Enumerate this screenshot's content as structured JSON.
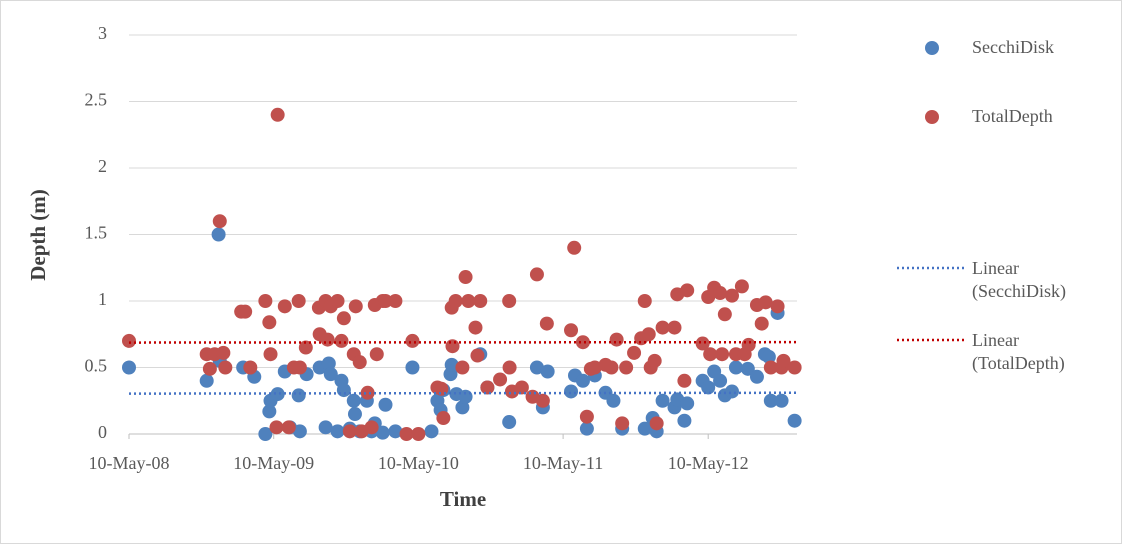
{
  "chart_data": {
    "type": "scatter",
    "x_label": "Time",
    "y_label": "Depth (m)",
    "xlim": [
      "2008-05-10",
      "2012-12-20"
    ],
    "xticks": [
      {
        "value": "2008-05-10",
        "label": "10-May-08"
      },
      {
        "value": "2009-05-10",
        "label": "10-May-09"
      },
      {
        "value": "2010-05-10",
        "label": "10-May-10"
      },
      {
        "value": "2011-05-10",
        "label": "10-May-11"
      },
      {
        "value": "2012-05-10",
        "label": "10-May-12"
      }
    ],
    "ylim": [
      0,
      3
    ],
    "yticks": [
      0,
      0.5,
      1,
      1.5,
      2,
      2.5,
      3
    ],
    "grid": true,
    "legend": "right",
    "series": [
      {
        "name": "SecchiDisk",
        "color": "#4f81bd",
        "trendline": {
          "name": "Linear (SecchiDisk)",
          "color": "#4472c4"
        },
        "x": [
          "2008-05-10",
          "2008-11-22",
          "2008-12-22",
          "2008-12-25",
          "2009-02-22",
          "2009-03-22",
          "2009-04-19",
          "2009-04-29",
          "2009-05-02",
          "2009-05-20",
          "2009-06-07",
          "2009-06-20",
          "2009-07-12",
          "2009-07-15",
          "2009-08-01",
          "2009-09-03",
          "2009-09-18",
          "2009-09-26",
          "2009-10-01",
          "2009-10-18",
          "2009-10-28",
          "2009-11-03",
          "2009-11-18",
          "2009-11-28",
          "2009-12-01",
          "2009-12-13",
          "2009-12-31",
          "2010-01-12",
          "2010-01-20",
          "2010-02-09",
          "2010-02-16",
          "2010-03-13",
          "2010-04-25",
          "2010-06-12",
          "2010-06-27",
          "2010-07-05",
          "2010-07-12",
          "2010-07-30",
          "2010-08-02",
          "2010-08-14",
          "2010-08-29",
          "2010-09-06",
          "2010-10-13",
          "2010-10-31",
          "2010-12-25",
          "2011-03-05",
          "2011-03-20",
          "2011-04-01",
          "2011-05-30",
          "2011-06-09",
          "2011-06-29",
          "2011-07-09",
          "2011-07-29",
          "2011-08-25",
          "2011-09-14",
          "2011-10-06",
          "2011-12-02",
          "2011-12-22",
          "2012-01-01",
          "2012-01-16",
          "2012-02-15",
          "2012-02-22",
          "2012-03-11",
          "2012-03-18",
          "2012-04-26",
          "2012-05-10",
          "2012-05-25",
          "2012-06-09",
          "2012-06-21",
          "2012-07-09",
          "2012-07-19",
          "2012-08-18",
          "2012-09-10",
          "2012-09-30",
          "2012-10-10",
          "2012-10-15",
          "2012-11-01",
          "2012-11-11",
          "2012-12-14"
        ],
        "values": [
          0.5,
          0.4,
          1.5,
          0.55,
          0.5,
          0.43,
          0,
          0.17,
          0.25,
          0.3,
          0.47,
          0.05,
          0.29,
          0.02,
          0.45,
          0.5,
          0.05,
          0.53,
          0.45,
          0.02,
          0.4,
          0.33,
          0.04,
          0.25,
          0.15,
          0.02,
          0.25,
          0.02,
          0.08,
          0.01,
          0.22,
          0.02,
          0.5,
          0.02,
          0.25,
          0.18,
          0.33,
          0.45,
          0.52,
          0.3,
          0.2,
          0.28,
          0.6,
          0.35,
          0.09,
          0.5,
          0.2,
          0.47,
          0.32,
          0.44,
          0.4,
          0.04,
          0.44,
          0.31,
          0.25,
          0.04,
          0.04,
          0.12,
          0.02,
          0.25,
          0.2,
          0.26,
          0.1,
          0.23,
          0.4,
          0.35,
          0.47,
          0.4,
          0.29,
          0.32,
          0.5,
          0.49,
          0.43,
          0.6,
          0.58,
          0.25,
          0.91,
          0.25,
          0.1
        ]
      },
      {
        "name": "TotalDepth",
        "color": "#c0504d",
        "trendline": {
          "name": "Linear (TotalDepth)",
          "color": "#c00000"
        },
        "x": [
          "2008-05-10",
          "2008-11-22",
          "2008-11-30",
          "2008-12-12",
          "2008-12-25",
          "2009-01-03",
          "2009-01-08",
          "2009-02-17",
          "2009-02-27",
          "2009-03-12",
          "2009-04-19",
          "2009-04-29",
          "2009-05-02",
          "2009-05-17",
          "2009-05-20",
          "2009-06-07",
          "2009-06-17",
          "2009-06-30",
          "2009-07-12",
          "2009-07-15",
          "2009-07-30",
          "2009-09-01",
          "2009-09-03",
          "2009-09-18",
          "2009-09-23",
          "2009-10-01",
          "2009-10-18",
          "2009-10-28",
          "2009-11-03",
          "2009-11-18",
          "2009-11-28",
          "2009-12-03",
          "2009-12-13",
          "2009-12-18",
          "2010-01-02",
          "2010-01-12",
          "2010-01-20",
          "2010-01-25",
          "2010-02-09",
          "2010-02-16",
          "2010-03-13",
          "2010-04-10",
          "2010-04-25",
          "2010-05-10",
          "2010-06-27",
          "2010-07-07",
          "2010-07-12",
          "2010-08-02",
          "2010-08-04",
          "2010-08-12",
          "2010-08-29",
          "2010-09-06",
          "2010-09-13",
          "2010-10-01",
          "2010-10-06",
          "2010-10-13",
          "2010-10-31",
          "2010-12-02",
          "2010-12-25",
          "2010-12-26",
          "2011-01-01",
          "2011-01-26",
          "2011-02-22",
          "2011-03-05",
          "2011-03-20",
          "2011-03-30",
          "2011-05-30",
          "2011-06-07",
          "2011-06-29",
          "2011-07-09",
          "2011-07-19",
          "2011-07-29",
          "2011-08-25",
          "2011-09-09",
          "2011-09-22",
          "2011-10-06",
          "2011-10-16",
          "2011-11-05",
          "2011-11-23",
          "2011-12-02",
          "2011-12-12",
          "2011-12-17",
          "2011-12-27",
          "2012-01-01",
          "2012-01-16",
          "2012-02-15",
          "2012-02-22",
          "2012-03-11",
          "2012-03-18",
          "2012-04-26",
          "2012-05-10",
          "2012-05-15",
          "2012-05-25",
          "2012-06-09",
          "2012-06-14",
          "2012-06-21",
          "2012-07-09",
          "2012-07-19",
          "2012-08-03",
          "2012-08-10",
          "2012-08-20",
          "2012-09-10",
          "2012-09-22",
          "2012-10-02",
          "2012-10-15",
          "2012-11-01",
          "2012-11-11",
          "2012-11-16",
          "2012-12-14"
        ],
        "values": [
          0.7,
          0.6,
          0.49,
          0.6,
          1.6,
          0.61,
          0.5,
          0.92,
          0.92,
          0.5,
          1,
          0.84,
          0.6,
          0.05,
          2.4,
          0.96,
          0.05,
          0.5,
          1,
          0.5,
          0.65,
          0.95,
          0.75,
          1,
          0.71,
          0.96,
          1,
          0.7,
          0.87,
          0.02,
          0.6,
          0.96,
          0.54,
          0.02,
          0.31,
          0.05,
          0.97,
          0.6,
          1,
          1,
          1,
          0,
          0.7,
          0,
          0.35,
          0.34,
          0.12,
          0.95,
          0.66,
          1,
          0.5,
          1.18,
          1,
          0.8,
          0.59,
          1,
          0.35,
          0.41,
          1,
          0.5,
          0.32,
          0.35,
          0.28,
          1.2,
          0.25,
          0.83,
          0.78,
          1.4,
          0.69,
          0.13,
          0.49,
          0.5,
          0.52,
          0.5,
          0.71,
          0.08,
          0.5,
          0.61,
          0.72,
          1,
          0.75,
          0.5,
          0.55,
          0.08,
          0.8,
          0.8,
          1.05,
          0.4,
          1.08,
          0.68,
          1.03,
          0.6,
          1.1,
          1.06,
          0.6,
          0.9,
          1.04,
          0.6,
          1.11,
          0.6,
          0.67,
          0.97,
          0.83,
          0.99,
          0.5,
          0.96,
          0.5,
          0.55,
          0.5
        ]
      }
    ]
  }
}
